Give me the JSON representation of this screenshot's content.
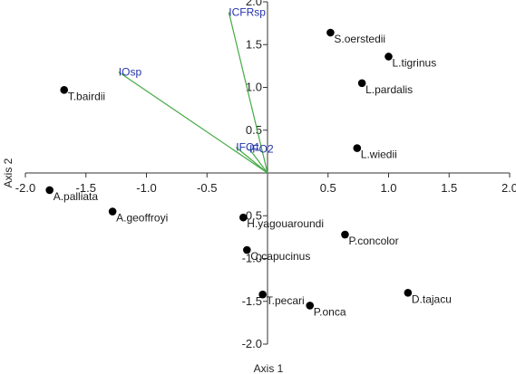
{
  "chart_data": {
    "type": "scatter",
    "xlabel": "Axis 1",
    "ylabel": "Axis 2",
    "xlim": [
      -2.0,
      2.0
    ],
    "ylim": [
      -2.0,
      2.0
    ],
    "xticks": [
      "-2.0",
      "-1.5",
      "-1.0",
      "-0.5",
      "0.5",
      "1.0",
      "1.5",
      "2.0"
    ],
    "yticks": [
      "2.0",
      "1.5",
      "1.0",
      "0.5",
      "-0.5",
      "-1.0",
      "-1.5",
      "-2.0"
    ],
    "grid": false,
    "points": [
      {
        "label": "S.oerstedii",
        "x": 0.52,
        "y": 1.64
      },
      {
        "label": "L.tigrinus",
        "x": 1.0,
        "y": 1.36
      },
      {
        "label": "L.pardalis",
        "x": 0.78,
        "y": 1.05
      },
      {
        "label": "T.bairdii",
        "x": -1.68,
        "y": 0.97
      },
      {
        "label": "L.wiedii",
        "x": 0.74,
        "y": 0.29
      },
      {
        "label": "A.palliata",
        "x": -1.8,
        "y": -0.2
      },
      {
        "label": "A.geoffroyi",
        "x": -1.28,
        "y": -0.45
      },
      {
        "label": "H.yagouaroundi",
        "x": -0.2,
        "y": -0.52
      },
      {
        "label": "P.concolor",
        "x": 0.64,
        "y": -0.72
      },
      {
        "label": "C.capucinus",
        "x": -0.17,
        "y": -0.9
      },
      {
        "label": "T.pecari",
        "x": -0.04,
        "y": -1.42
      },
      {
        "label": "P.onca",
        "x": 0.35,
        "y": -1.55
      },
      {
        "label": "D.tajacu",
        "x": 1.16,
        "y": -1.4
      }
    ],
    "vectors": [
      {
        "label": "ICFRsp",
        "x": -0.32,
        "y": 1.88
      },
      {
        "label": "IOsp",
        "x": -1.23,
        "y": 1.18
      },
      {
        "label": "IFO1",
        "x": -0.26,
        "y": 0.3
      },
      {
        "label": "IFO2",
        "x": -0.15,
        "y": 0.28
      }
    ],
    "colors": {
      "points": "#000000",
      "vectors": "#44aa44",
      "vector_labels": "#2233aa"
    }
  }
}
